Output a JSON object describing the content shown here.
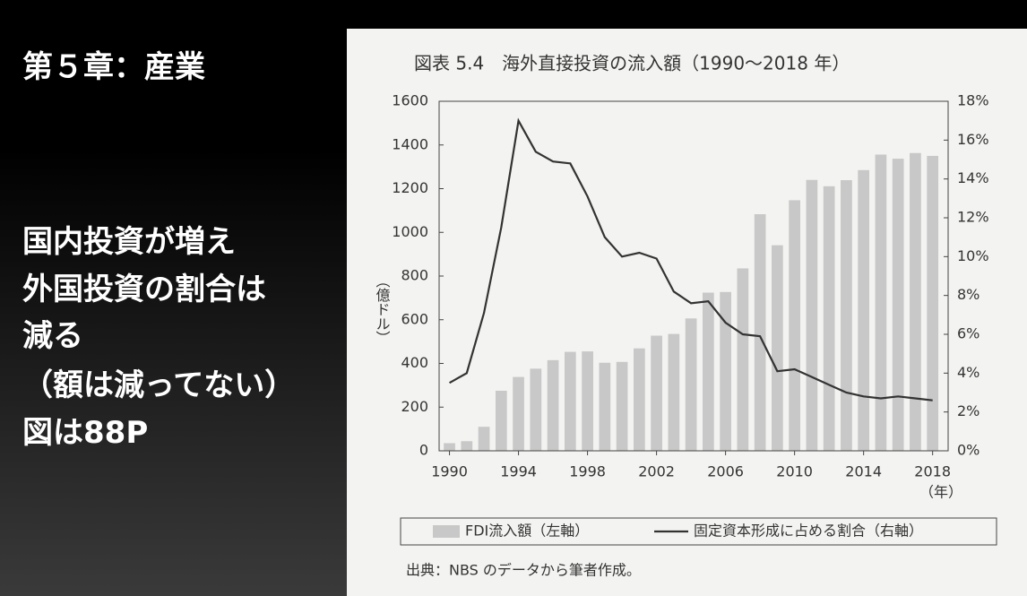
{
  "slide": {
    "heading": "第５章：産業",
    "lines": [
      "国内投資が増え",
      "外国投資の割合は",
      "減る",
      "（額は減ってない）",
      "図は88P"
    ]
  },
  "chart_data": {
    "type": "combo",
    "title": "図表 5.4　海外直接投資の流入額（1990～2018 年）",
    "y_label": "（億ドル）",
    "x_unit": "（年）",
    "source": "出典：NBS のデータから筆者作成。",
    "x": [
      1990,
      1991,
      1992,
      1993,
      1994,
      1995,
      1996,
      1997,
      1998,
      1999,
      2000,
      2001,
      2002,
      2003,
      2004,
      2005,
      2006,
      2007,
      2008,
      2009,
      2010,
      2011,
      2012,
      2013,
      2014,
      2015,
      2016,
      2017,
      2018
    ],
    "series": [
      {
        "name": "FDI流入額（左軸）",
        "type": "bar",
        "color": "#c8c8c8",
        "values": [
          35,
          44,
          110,
          275,
          338,
          376,
          415,
          453,
          455,
          403,
          407,
          469,
          527,
          535,
          606,
          724,
          727,
          835,
          1083,
          941,
          1147,
          1240,
          1211,
          1239,
          1285,
          1356,
          1337,
          1363,
          1350
        ]
      },
      {
        "name": "固定資本形成に占める割合（右軸）",
        "type": "line",
        "axis": "y2",
        "color": "#333333",
        "values": [
          3.5,
          4.0,
          7.1,
          11.5,
          17.0,
          15.4,
          14.9,
          14.8,
          13.1,
          11.0,
          10.0,
          10.2,
          9.9,
          8.2,
          7.6,
          7.7,
          6.6,
          6.0,
          5.9,
          4.1,
          4.2,
          3.8,
          3.4,
          3.0,
          2.8,
          2.7,
          2.8,
          2.7,
          2.6
        ]
      }
    ],
    "xlim": [
      1989.4,
      2018.9
    ],
    "xticks": [
      1990,
      1994,
      1998,
      2002,
      2006,
      2010,
      2014,
      2018
    ],
    "ylim": [
      0,
      1600
    ],
    "yticks": [
      0,
      200,
      400,
      600,
      800,
      1000,
      1200,
      1400,
      1600
    ],
    "y2lim": [
      0,
      18
    ],
    "y2ticks": [
      {
        "value": 0,
        "label": "0%"
      },
      {
        "value": 2,
        "label": "2%"
      },
      {
        "value": 4,
        "label": "4%"
      },
      {
        "value": 6,
        "label": "6%"
      },
      {
        "value": 8,
        "label": "8%"
      },
      {
        "value": 10,
        "label": "10%"
      },
      {
        "value": 12,
        "label": "12%"
      },
      {
        "value": 14,
        "label": "14%"
      },
      {
        "value": 16,
        "label": "16%"
      },
      {
        "value": 18,
        "label": "18%"
      }
    ],
    "grid": false
  }
}
